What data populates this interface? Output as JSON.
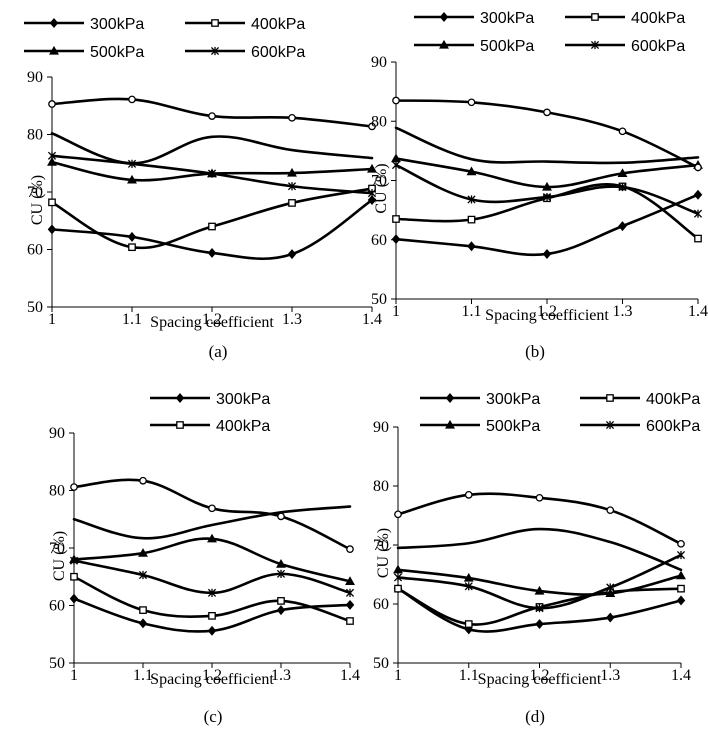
{
  "chart_data": [
    {
      "type": "line",
      "panel_label": "(a)",
      "x": [
        1,
        1.1,
        1.2,
        1.3,
        1.4
      ],
      "x_tick_labels": [
        "1",
        "1.1",
        "1.2",
        "1.3",
        "1.4"
      ],
      "xlabel": "Spacing coefficient",
      "ylabel": "CU (%)",
      "ylim": [
        50,
        90
      ],
      "y_ticks": [
        50,
        60,
        70,
        80,
        90
      ],
      "grid": false,
      "legend_position": "top",
      "legend": [
        "300kPa",
        "400kPa",
        "500kPa",
        "600kPa"
      ],
      "series": [
        {
          "name": "300kPa",
          "marker": "diamond",
          "values": [
            63.5,
            62.2,
            59.4,
            59.2,
            68.6
          ]
        },
        {
          "name": "400kPa",
          "marker": "square",
          "values": [
            68.2,
            60.4,
            64.0,
            68.1,
            70.6
          ]
        },
        {
          "name": "500kPa",
          "marker": "triangle",
          "values": [
            75.2,
            72.1,
            73.2,
            73.3,
            74.0
          ]
        },
        {
          "name": "600kPa",
          "marker": "star",
          "values": [
            76.3,
            74.9,
            73.2,
            71.0,
            69.8
          ]
        },
        {
          "name": "",
          "marker": "circle",
          "values": [
            85.3,
            86.1,
            83.2,
            82.9,
            81.4
          ]
        },
        {
          "name": "",
          "marker": "none",
          "values": [
            80.2,
            75.0,
            79.6,
            77.3,
            75.9
          ]
        }
      ]
    },
    {
      "type": "line",
      "panel_label": "(b)",
      "x": [
        1,
        1.1,
        1.2,
        1.3,
        1.4
      ],
      "x_tick_labels": [
        "1",
        "1.1",
        "1.2",
        "1.3",
        "1.4"
      ],
      "xlabel": "Spacing coefficient",
      "ylabel": "CU (%)",
      "ylim": [
        50,
        90
      ],
      "y_ticks": [
        50,
        60,
        70,
        80,
        90
      ],
      "grid": false,
      "legend_position": "top",
      "legend": [
        "300kPa",
        "400kPa",
        "500kPa",
        "600kPa"
      ],
      "series": [
        {
          "name": "300kPa",
          "marker": "diamond",
          "values": [
            60.1,
            58.9,
            57.6,
            62.3,
            67.6
          ]
        },
        {
          "name": "400kPa",
          "marker": "square",
          "values": [
            63.5,
            63.4,
            67.0,
            69.0,
            60.2
          ]
        },
        {
          "name": "500kPa",
          "marker": "triangle",
          "values": [
            73.7,
            71.5,
            68.9,
            71.2,
            72.6
          ]
        },
        {
          "name": "600kPa",
          "marker": "star",
          "values": [
            72.6,
            66.8,
            67.2,
            68.9,
            64.4
          ]
        },
        {
          "name": "",
          "marker": "circle",
          "values": [
            83.5,
            83.2,
            81.5,
            78.3,
            72.2
          ]
        },
        {
          "name": "",
          "marker": "none",
          "values": [
            78.9,
            73.6,
            73.2,
            73.0,
            73.9
          ]
        }
      ]
    },
    {
      "type": "line",
      "panel_label": "(c)",
      "x": [
        1,
        1.1,
        1.2,
        1.3,
        1.4
      ],
      "x_tick_labels": [
        "1",
        "1.1",
        "1.2",
        "1.3",
        "1.4"
      ],
      "xlabel": "Spacing coefficient",
      "ylabel": "CU (%)",
      "ylim": [
        50,
        90
      ],
      "y_ticks": [
        50,
        60,
        70,
        80,
        90
      ],
      "grid": false,
      "legend_position": "top",
      "legend": [
        "300kPa",
        "400kPa"
      ],
      "series": [
        {
          "name": "300kPa",
          "marker": "diamond",
          "values": [
            61.2,
            56.9,
            55.6,
            59.2,
            60.1
          ]
        },
        {
          "name": "400kPa",
          "marker": "square",
          "values": [
            65.0,
            59.2,
            58.2,
            60.8,
            57.3
          ]
        },
        {
          "name": "",
          "marker": "triangle",
          "values": [
            68.0,
            69.1,
            71.6,
            67.2,
            64.2
          ]
        },
        {
          "name": "",
          "marker": "star",
          "values": [
            67.8,
            65.3,
            62.2,
            65.5,
            62.2
          ]
        },
        {
          "name": "",
          "marker": "circle",
          "values": [
            80.6,
            81.7,
            76.9,
            75.5,
            69.8
          ]
        },
        {
          "name": "",
          "marker": "none",
          "values": [
            75.0,
            71.7,
            74.0,
            76.2,
            77.2
          ]
        }
      ]
    },
    {
      "type": "line",
      "panel_label": "(d)",
      "x": [
        1,
        1.1,
        1.2,
        1.3,
        1.4
      ],
      "x_tick_labels": [
        "1",
        "1.1",
        "1.2",
        "1.3",
        "1.4"
      ],
      "xlabel": "Spacing coefficient",
      "ylabel": "CU (%)",
      "ylim": [
        50,
        90
      ],
      "y_ticks": [
        50,
        60,
        70,
        80,
        90
      ],
      "grid": false,
      "legend_position": "top",
      "legend": [
        "300kPa",
        "400kPa",
        "500kPa",
        "600kPa"
      ],
      "series": [
        {
          "name": "300kPa",
          "marker": "diamond",
          "values": [
            62.6,
            55.7,
            56.6,
            57.7,
            60.6
          ]
        },
        {
          "name": "400kPa",
          "marker": "square",
          "values": [
            62.6,
            56.6,
            59.5,
            62.0,
            62.6
          ]
        },
        {
          "name": "500kPa",
          "marker": "triangle",
          "values": [
            65.8,
            64.4,
            62.2,
            61.8,
            64.8
          ]
        },
        {
          "name": "600kPa",
          "marker": "star",
          "values": [
            64.5,
            63.0,
            59.3,
            62.8,
            68.3
          ]
        },
        {
          "name": "",
          "marker": "circle",
          "values": [
            75.2,
            78.5,
            78.0,
            75.9,
            70.2
          ]
        },
        {
          "name": "",
          "marker": "none",
          "values": [
            69.5,
            70.3,
            72.7,
            70.5,
            65.8
          ]
        }
      ]
    }
  ]
}
